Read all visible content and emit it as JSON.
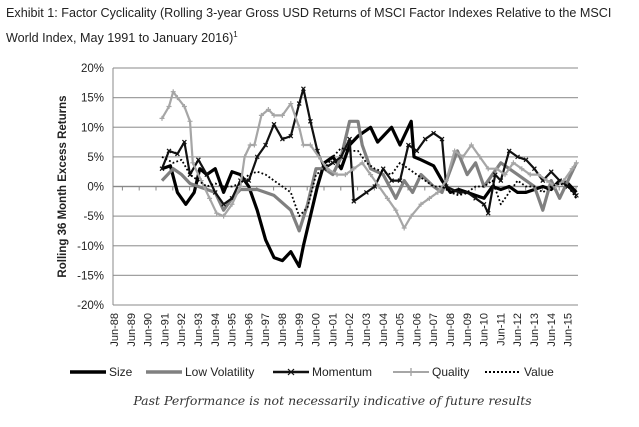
{
  "title": "Exhibit 1: Factor Cyclicality (Rolling 3-year Gross USD Returns of MSCI Factor Indexes Relative to the MSCI World Index, May 1991 to January 2016)",
  "title_footnote": "1",
  "footer": "Past Performance is not necessarily indicative of future results",
  "chart_data": {
    "type": "line",
    "title": "",
    "xlabel": "",
    "ylabel": "Rolling 36 Month Excess Returns",
    "ylim": [
      -20,
      20
    ],
    "yticks": [
      "20%",
      "15%",
      "10%",
      "5%",
      "0%",
      "-5%",
      "-10%",
      "-15%",
      "-20%"
    ],
    "ytick_values": [
      20,
      15,
      10,
      5,
      0,
      -5,
      -10,
      -15,
      -20
    ],
    "xticks": [
      "Jun-88",
      "Jun-89",
      "Jun-90",
      "Jun-91",
      "Jun-92",
      "Jun-93",
      "Jun-94",
      "Jun-95",
      "Jun-96",
      "Jun-97",
      "Jun-98",
      "Jun-99",
      "Jun-00",
      "Jun-01",
      "Jun-02",
      "Jun-03",
      "Jun-04",
      "Jun-05",
      "Jun-06",
      "Jun-07",
      "Jun-08",
      "Jun-09",
      "Jun-10",
      "Jun-11",
      "Jun-12",
      "Jun-13",
      "Jun-14",
      "Jun-15"
    ],
    "xlim": [
      "1988-06",
      "2016-01"
    ],
    "grid": "horizontal",
    "legend_position": "bottom",
    "series": [
      {
        "name": "Size",
        "color": "#000000",
        "style": "thick-solid",
        "points": [
          [
            "1991-05",
            3
          ],
          [
            "1991-11",
            3.5
          ],
          [
            "1992-04",
            -1
          ],
          [
            "1992-10",
            -3
          ],
          [
            "1993-04",
            -1
          ],
          [
            "1993-08",
            3
          ],
          [
            "1994-01",
            2
          ],
          [
            "1994-07",
            3
          ],
          [
            "1995-01",
            -1
          ],
          [
            "1995-07",
            2.5
          ],
          [
            "1996-01",
            2
          ],
          [
            "1996-07",
            0
          ],
          [
            "1997-01",
            -4
          ],
          [
            "1997-07",
            -9
          ],
          [
            "1998-01",
            -12
          ],
          [
            "1998-07",
            -12.5
          ],
          [
            "1999-01",
            -11
          ],
          [
            "1999-07",
            -13.5
          ],
          [
            "1999-10",
            -10
          ],
          [
            "2000-03",
            -5
          ],
          [
            "2000-08",
            0
          ],
          [
            "2001-01",
            4
          ],
          [
            "2001-07",
            5
          ],
          [
            "2002-01",
            3
          ],
          [
            "2002-07",
            7
          ],
          [
            "2003-01",
            8.5
          ],
          [
            "2003-10",
            10
          ],
          [
            "2004-03",
            7.5
          ],
          [
            "2005-01",
            10
          ],
          [
            "2005-07",
            7
          ],
          [
            "2006-03",
            11
          ],
          [
            "2006-05",
            5
          ],
          [
            "2006-10",
            4.5
          ],
          [
            "2007-07",
            3.5
          ],
          [
            "2008-01",
            1
          ],
          [
            "2008-07",
            -1
          ],
          [
            "2009-01",
            -0.5
          ],
          [
            "2009-07",
            -1
          ],
          [
            "2010-01",
            -1.5
          ],
          [
            "2010-07",
            -2
          ],
          [
            "2011-01",
            0
          ],
          [
            "2011-07",
            -0.5
          ],
          [
            "2012-01",
            0
          ],
          [
            "2012-07",
            -1
          ],
          [
            "2013-01",
            -1
          ],
          [
            "2013-07",
            -0.5
          ],
          [
            "2014-01",
            0
          ],
          [
            "2014-07",
            -0.5
          ],
          [
            "2015-01",
            1
          ],
          [
            "2015-07",
            0.5
          ],
          [
            "2016-01",
            -1
          ]
        ]
      },
      {
        "name": "Low Volatility",
        "color": "#808080",
        "style": "thick-solid",
        "points": [
          [
            "1991-05",
            1
          ],
          [
            "1992-01",
            3
          ],
          [
            "1992-07",
            2
          ],
          [
            "1993-01",
            0.5
          ],
          [
            "1993-07",
            0
          ],
          [
            "1994-07",
            -1
          ],
          [
            "1995-01",
            -4
          ],
          [
            "1995-07",
            -2
          ],
          [
            "1996-01",
            -0.5
          ],
          [
            "1997-01",
            -0.5
          ],
          [
            "1998-01",
            -1.5
          ],
          [
            "1999-01",
            -4
          ],
          [
            "1999-07",
            -7.5
          ],
          [
            "2000-01",
            -3
          ],
          [
            "2000-07",
            3
          ],
          [
            "2001-01",
            3
          ],
          [
            "2001-07",
            2
          ],
          [
            "2002-01",
            5
          ],
          [
            "2002-07",
            11
          ],
          [
            "2003-01",
            11
          ],
          [
            "2003-04",
            7
          ],
          [
            "2003-10",
            3
          ],
          [
            "2004-07",
            2
          ],
          [
            "2005-04",
            -2
          ],
          [
            "2005-10",
            1
          ],
          [
            "2006-04",
            -1
          ],
          [
            "2006-10",
            2
          ],
          [
            "2007-07",
            0
          ],
          [
            "2008-01",
            -1
          ],
          [
            "2008-12",
            6
          ],
          [
            "2009-07",
            2
          ],
          [
            "2010-01",
            4
          ],
          [
            "2010-07",
            0
          ],
          [
            "2011-01",
            2
          ],
          [
            "2011-07",
            4
          ],
          [
            "2012-01",
            3
          ],
          [
            "2012-07",
            2
          ],
          [
            "2013-01",
            1
          ],
          [
            "2013-07",
            0
          ],
          [
            "2014-01",
            -4
          ],
          [
            "2014-07",
            1
          ],
          [
            "2015-01",
            -2
          ],
          [
            "2015-07",
            1
          ],
          [
            "2016-01",
            4
          ]
        ]
      },
      {
        "name": "Momentum",
        "color": "#111111",
        "style": "marker-x",
        "points": [
          [
            "1991-05",
            3
          ],
          [
            "1991-10",
            6
          ],
          [
            "1992-04",
            5.5
          ],
          [
            "1992-09",
            7.5
          ],
          [
            "1993-01",
            2
          ],
          [
            "1993-07",
            4.5
          ],
          [
            "1994-01",
            2
          ],
          [
            "1994-07",
            -1
          ],
          [
            "1995-01",
            -3
          ],
          [
            "1995-07",
            -2
          ],
          [
            "1996-01",
            1
          ],
          [
            "1996-07",
            1
          ],
          [
            "1997-01",
            5
          ],
          [
            "1997-07",
            7
          ],
          [
            "1998-01",
            10.5
          ],
          [
            "1998-07",
            8
          ],
          [
            "1999-01",
            8.5
          ],
          [
            "1999-07",
            14
          ],
          [
            "1999-10",
            16.5
          ],
          [
            "2000-03",
            11
          ],
          [
            "2000-08",
            6
          ],
          [
            "2001-01",
            3
          ],
          [
            "2001-07",
            4
          ],
          [
            "2002-01",
            5
          ],
          [
            "2002-07",
            8
          ],
          [
            "2002-10",
            -2.5
          ],
          [
            "2003-07",
            -1
          ],
          [
            "2004-01",
            0
          ],
          [
            "2004-07",
            3
          ],
          [
            "2005-01",
            1
          ],
          [
            "2005-07",
            1
          ],
          [
            "2006-01",
            7
          ],
          [
            "2006-07",
            6
          ],
          [
            "2007-01",
            8
          ],
          [
            "2007-07",
            9
          ],
          [
            "2008-01",
            8
          ],
          [
            "2008-04",
            0
          ],
          [
            "2009-01",
            -1
          ],
          [
            "2009-07",
            -1
          ],
          [
            "2010-01",
            -2
          ],
          [
            "2010-07",
            -3
          ],
          [
            "2010-10",
            -4.5
          ],
          [
            "2011-03",
            2
          ],
          [
            "2011-07",
            1
          ],
          [
            "2012-01",
            6
          ],
          [
            "2012-07",
            5
          ],
          [
            "2013-01",
            4.5
          ],
          [
            "2013-07",
            3
          ],
          [
            "2014-01",
            1
          ],
          [
            "2014-07",
            2.5
          ],
          [
            "2015-01",
            1
          ],
          [
            "2015-07",
            0
          ],
          [
            "2016-01",
            -1.5
          ]
        ]
      },
      {
        "name": "Quality",
        "color": "#a6a6a6",
        "style": "marker-plus",
        "points": [
          [
            "1991-05",
            11.5
          ],
          [
            "1991-10",
            13.5
          ],
          [
            "1992-01",
            16
          ],
          [
            "1992-04",
            15
          ],
          [
            "1992-09",
            13.5
          ],
          [
            "1993-01",
            11
          ],
          [
            "1993-03",
            4
          ],
          [
            "1993-09",
            1
          ],
          [
            "1994-03",
            -2
          ],
          [
            "1994-08",
            -4.5
          ],
          [
            "1995-01",
            -5
          ],
          [
            "1995-07",
            -3
          ],
          [
            "1996-01",
            0
          ],
          [
            "1996-04",
            5
          ],
          [
            "1996-08",
            7
          ],
          [
            "1996-11",
            7
          ],
          [
            "1997-04",
            12
          ],
          [
            "1997-09",
            13
          ],
          [
            "1998-01",
            12
          ],
          [
            "1998-07",
            12
          ],
          [
            "1999-01",
            14
          ],
          [
            "1999-07",
            10
          ],
          [
            "1999-10",
            7
          ],
          [
            "2000-03",
            7
          ],
          [
            "2000-09",
            5
          ],
          [
            "2001-03",
            3
          ],
          [
            "2001-10",
            2
          ],
          [
            "2002-04",
            2
          ],
          [
            "2002-10",
            3
          ],
          [
            "2003-04",
            4
          ],
          [
            "2003-10",
            2
          ],
          [
            "2004-04",
            0
          ],
          [
            "2004-10",
            -2
          ],
          [
            "2005-04",
            -4
          ],
          [
            "2005-10",
            -7
          ],
          [
            "2006-03",
            -5
          ],
          [
            "2006-10",
            -3
          ],
          [
            "2007-04",
            -2
          ],
          [
            "2007-10",
            -1
          ],
          [
            "2008-04",
            1
          ],
          [
            "2008-10",
            6
          ],
          [
            "2009-04",
            5
          ],
          [
            "2009-10",
            7
          ],
          [
            "2010-04",
            5
          ],
          [
            "2010-10",
            3
          ],
          [
            "2011-04",
            3
          ],
          [
            "2011-10",
            2
          ],
          [
            "2012-04",
            4
          ],
          [
            "2012-10",
            3
          ],
          [
            "2013-04",
            2
          ],
          [
            "2013-10",
            2
          ],
          [
            "2014-04",
            1
          ],
          [
            "2014-10",
            0
          ],
          [
            "2015-04",
            1
          ],
          [
            "2015-10",
            3
          ],
          [
            "2016-01",
            4
          ]
        ]
      },
      {
        "name": "Value",
        "color": "#000000",
        "style": "dotted",
        "points": [
          [
            "1991-05",
            5
          ],
          [
            "1992-01",
            4
          ],
          [
            "1992-07",
            4.5
          ],
          [
            "1993-01",
            2
          ],
          [
            "1993-07",
            1
          ],
          [
            "1994-01",
            0
          ],
          [
            "1994-07",
            0.5
          ],
          [
            "1995-01",
            0
          ],
          [
            "1995-07",
            0
          ],
          [
            "1996-01",
            0.5
          ],
          [
            "1996-07",
            2
          ],
          [
            "1997-01",
            2.5
          ],
          [
            "1997-07",
            2
          ],
          [
            "1998-01",
            1
          ],
          [
            "1998-07",
            0
          ],
          [
            "1999-01",
            -1
          ],
          [
            "1999-07",
            -5
          ],
          [
            "2000-01",
            -3.5
          ],
          [
            "2000-07",
            2
          ],
          [
            "2001-01",
            3
          ],
          [
            "2001-07",
            5
          ],
          [
            "2002-01",
            6.5
          ],
          [
            "2002-07",
            6
          ],
          [
            "2003-01",
            6
          ],
          [
            "2003-07",
            4
          ],
          [
            "2004-01",
            3
          ],
          [
            "2004-07",
            2.5
          ],
          [
            "2005-01",
            2
          ],
          [
            "2005-07",
            4
          ],
          [
            "2006-01",
            3
          ],
          [
            "2006-07",
            2
          ],
          [
            "2007-01",
            1
          ],
          [
            "2007-07",
            0
          ],
          [
            "2008-01",
            0
          ],
          [
            "2008-07",
            -1
          ],
          [
            "2009-01",
            -1.5
          ],
          [
            "2009-07",
            -1
          ],
          [
            "2010-01",
            0
          ],
          [
            "2010-07",
            0
          ],
          [
            "2011-01",
            1
          ],
          [
            "2011-07",
            -3
          ],
          [
            "2012-01",
            -1
          ],
          [
            "2012-07",
            1
          ],
          [
            "2013-01",
            0
          ],
          [
            "2013-07",
            0
          ],
          [
            "2014-01",
            -1
          ],
          [
            "2014-07",
            0
          ],
          [
            "2015-01",
            0.5
          ],
          [
            "2015-07",
            0
          ],
          [
            "2016-01",
            -2
          ]
        ]
      }
    ]
  }
}
